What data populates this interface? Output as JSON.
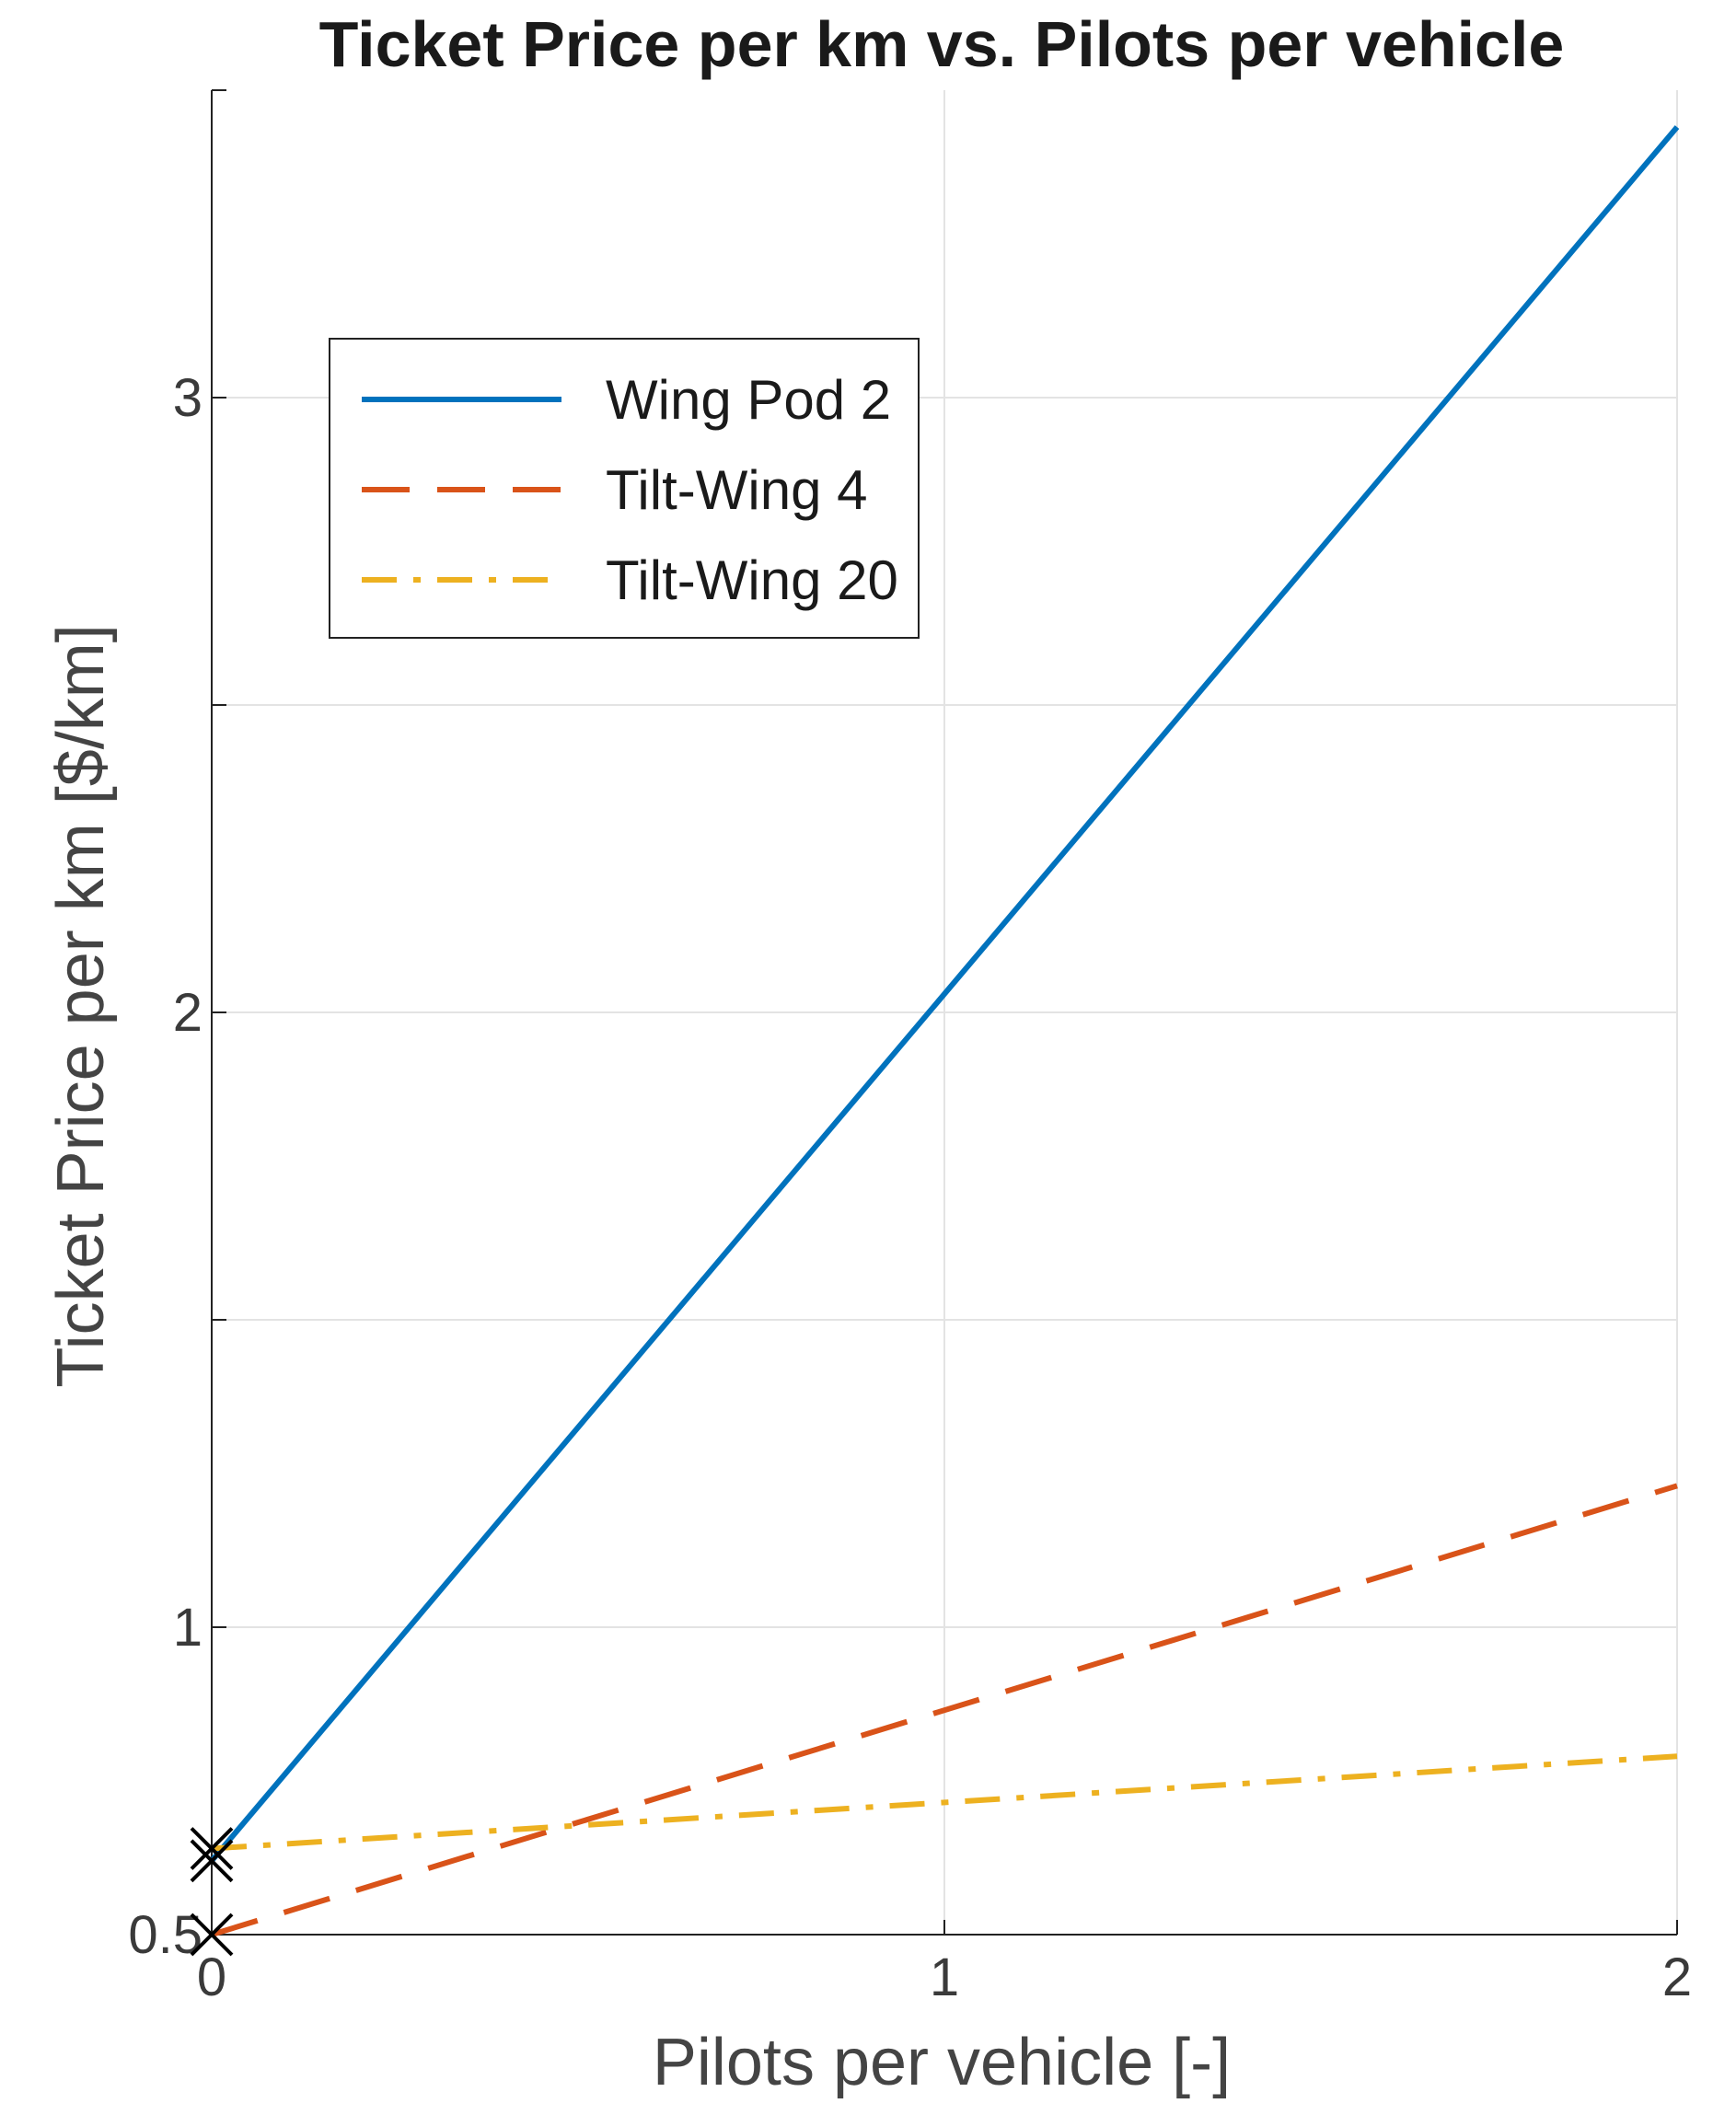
{
  "chart_data": {
    "type": "line",
    "title": "Ticket Price per km vs. Pilots per vehicle",
    "xlabel": "Pilots per vehicle [-]",
    "ylabel": "Ticket Price per km [$/km]",
    "xlim": [
      0,
      2
    ],
    "ylim": [
      0.5,
      3.5
    ],
    "xticks": [
      0,
      1,
      2
    ],
    "xtick_labels": [
      "0",
      "1",
      "2"
    ],
    "yticks": [
      0.5,
      1,
      1.5,
      2,
      2.5,
      3
    ],
    "ytick_labels": [
      "0.5",
      "1",
      "",
      "2",
      "",
      "3"
    ],
    "grid": true,
    "legend_placement": "upper-left",
    "series": [
      {
        "name": "Wing Pod 2",
        "style": "solid",
        "color": "#0072BD",
        "x": [
          0,
          2
        ],
        "y": [
          0.62,
          3.44
        ]
      },
      {
        "name": "Tilt-Wing 4",
        "style": "dashed",
        "color": "#D95319",
        "x": [
          0,
          2
        ],
        "y": [
          0.5,
          1.23
        ]
      },
      {
        "name": "Tilt-Wing 20",
        "style": "dashdot",
        "color": "#EDB120",
        "x": [
          0,
          2
        ],
        "y": [
          0.64,
          0.79
        ]
      }
    ],
    "markers": [
      {
        "x": 0,
        "y": 0.64,
        "symbol": "x",
        "color": "#000000"
      },
      {
        "x": 0,
        "y": 0.62,
        "symbol": "x",
        "color": "#000000"
      },
      {
        "x": 0,
        "y": 0.5,
        "symbol": "x",
        "color": "#000000"
      }
    ]
  }
}
